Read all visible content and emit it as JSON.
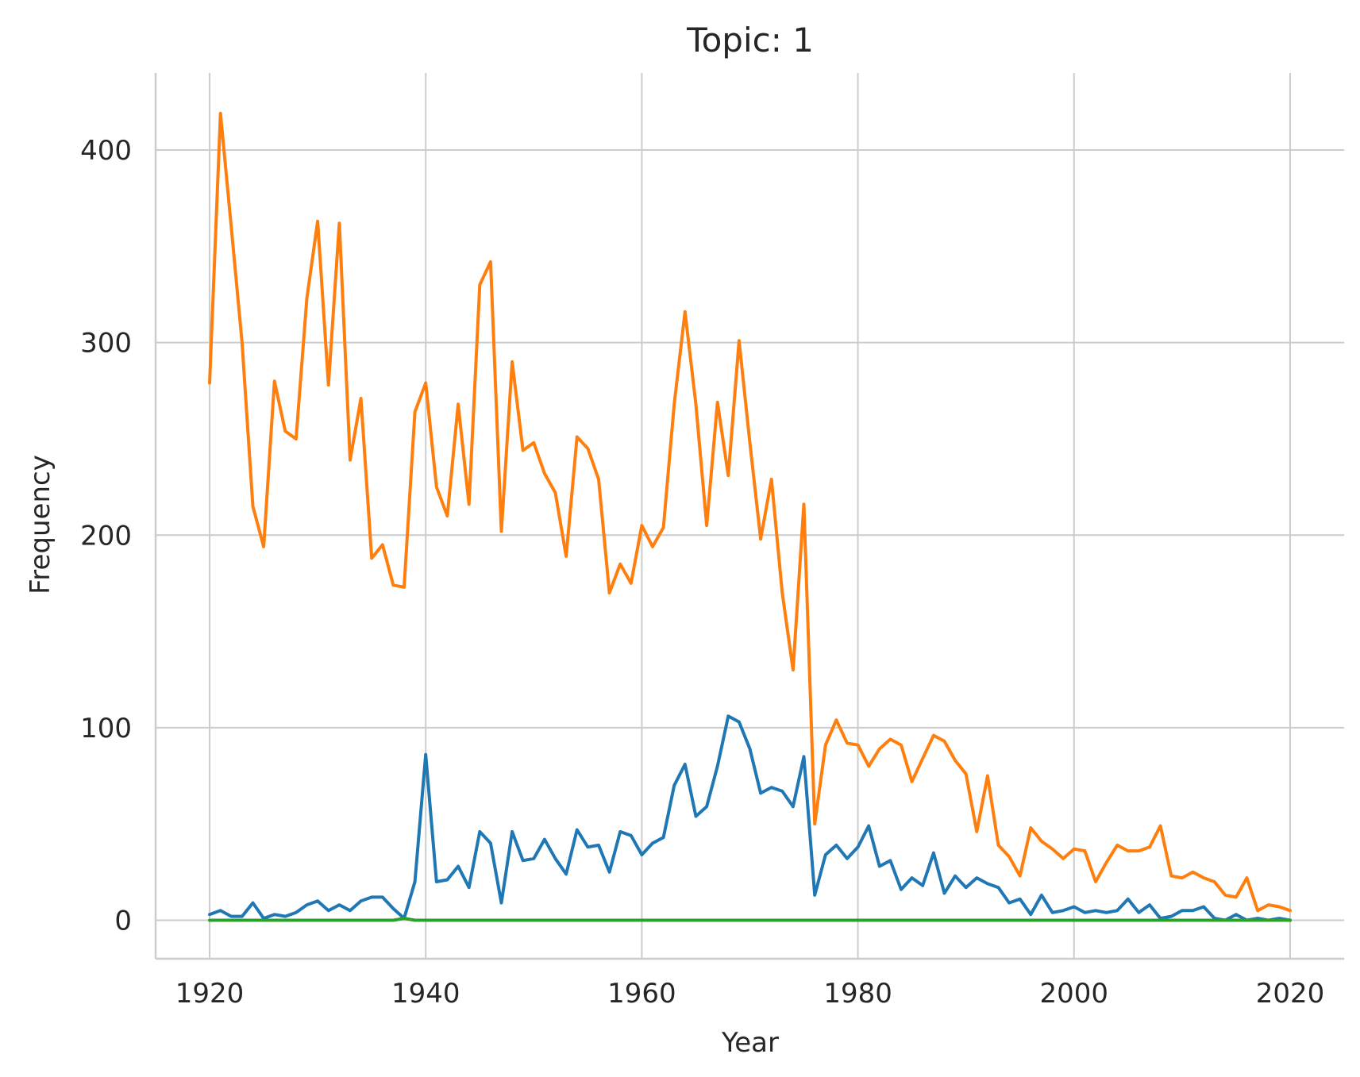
{
  "chart_data": {
    "type": "line",
    "title": "Topic: 1",
    "xlabel": "Year",
    "ylabel": "Frequency",
    "xlim": [
      1915,
      2025
    ],
    "ylim": [
      -20,
      440
    ],
    "grid": true,
    "x_ticks": [
      1920,
      1940,
      1960,
      1980,
      2000,
      2020
    ],
    "y_ticks": [
      0,
      100,
      200,
      300,
      400
    ],
    "x": [
      1920,
      1921,
      1922,
      1923,
      1924,
      1925,
      1926,
      1927,
      1928,
      1929,
      1930,
      1931,
      1932,
      1933,
      1934,
      1935,
      1936,
      1937,
      1938,
      1939,
      1940,
      1941,
      1942,
      1943,
      1944,
      1945,
      1946,
      1947,
      1948,
      1949,
      1950,
      1951,
      1952,
      1953,
      1954,
      1955,
      1956,
      1957,
      1958,
      1959,
      1960,
      1961,
      1962,
      1963,
      1964,
      1965,
      1966,
      1967,
      1968,
      1969,
      1970,
      1971,
      1972,
      1973,
      1974,
      1975,
      1976,
      1977,
      1978,
      1979,
      1980,
      1981,
      1982,
      1983,
      1984,
      1985,
      1986,
      1987,
      1988,
      1989,
      1990,
      1991,
      1992,
      1993,
      1994,
      1995,
      1996,
      1997,
      1998,
      1999,
      2000,
      2001,
      2002,
      2003,
      2004,
      2005,
      2006,
      2007,
      2008,
      2009,
      2010,
      2011,
      2012,
      2013,
      2014,
      2015,
      2016,
      2017,
      2018,
      2019,
      2020
    ],
    "series": [
      {
        "color": "#ff7f0e",
        "values": [
          279,
          419,
          360,
          300,
          215,
          194,
          280,
          254,
          250,
          323,
          363,
          278,
          362,
          239,
          271,
          188,
          195,
          174,
          173,
          264,
          279,
          225,
          210,
          268,
          216,
          330,
          342,
          202,
          290,
          244,
          248,
          232,
          222,
          189,
          251,
          245,
          229,
          170,
          185,
          175,
          205,
          194,
          204,
          268,
          316,
          268,
          205,
          269,
          231,
          301,
          248,
          198,
          229,
          170,
          130,
          216,
          50,
          91,
          104,
          92,
          91,
          80,
          89,
          94,
          91,
          72,
          84,
          96,
          93,
          83,
          76,
          46,
          75,
          39,
          33,
          23,
          48,
          41,
          37,
          32,
          37,
          36,
          20,
          30,
          39,
          36,
          36,
          38,
          49,
          23,
          22,
          25,
          22,
          20,
          13,
          12,
          22,
          5,
          8,
          7,
          5
        ]
      },
      {
        "color": "#1f77b4",
        "values": [
          3,
          5,
          2,
          2,
          9,
          1,
          3,
          2,
          4,
          8,
          10,
          5,
          8,
          5,
          10,
          12,
          12,
          6,
          1,
          20,
          86,
          20,
          21,
          28,
          17,
          46,
          40,
          9,
          46,
          31,
          32,
          42,
          32,
          24,
          47,
          38,
          39,
          25,
          46,
          44,
          34,
          40,
          43,
          70,
          81,
          54,
          59,
          80,
          106,
          103,
          89,
          66,
          69,
          67,
          59,
          85,
          13,
          34,
          39,
          32,
          38,
          49,
          28,
          31,
          16,
          22,
          18,
          35,
          14,
          23,
          17,
          22,
          19,
          17,
          9,
          11,
          3,
          13,
          4,
          5,
          7,
          4,
          5,
          4,
          5,
          11,
          4,
          8,
          1,
          2,
          5,
          5,
          7,
          1,
          0,
          3,
          0,
          1,
          0,
          1,
          0
        ]
      },
      {
        "color": "#2ca02c",
        "values": [
          0,
          0,
          0,
          0,
          0,
          0,
          0,
          0,
          0,
          0,
          0,
          0,
          0,
          0,
          0,
          0,
          0,
          0,
          1,
          0,
          0,
          0,
          0,
          0,
          0,
          0,
          0,
          0,
          0,
          0,
          0,
          0,
          0,
          0,
          0,
          0,
          0,
          0,
          0,
          0,
          0,
          0,
          0,
          0,
          0,
          0,
          0,
          0,
          0,
          0,
          0,
          0,
          0,
          0,
          0,
          0,
          0,
          0,
          0,
          0,
          0,
          0,
          0,
          0,
          0,
          0,
          0,
          0,
          0,
          0,
          0,
          0,
          0,
          0,
          0,
          0,
          0,
          0,
          0,
          0,
          0,
          0,
          0,
          0,
          0,
          0,
          0,
          0,
          0,
          0,
          0,
          0,
          0,
          0,
          0,
          0,
          0,
          0,
          0,
          0,
          0
        ]
      }
    ]
  }
}
